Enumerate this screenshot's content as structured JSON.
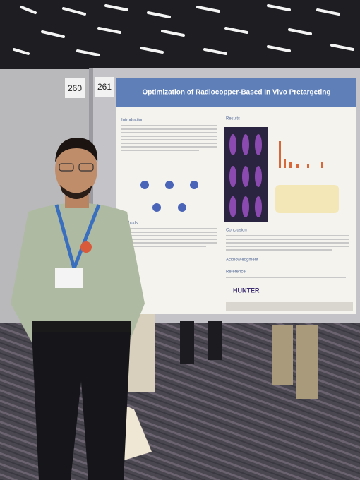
{
  "board_numbers": [
    "260",
    "261"
  ],
  "poster": {
    "title": "Optimization of Radiocopper-Based In Vivo Pretargeting",
    "sections": [
      "Introduction",
      "Results",
      "Methods",
      "Conclusion",
      "Acknowledgment",
      "Reference"
    ],
    "logos": [
      "HUNTER"
    ]
  }
}
